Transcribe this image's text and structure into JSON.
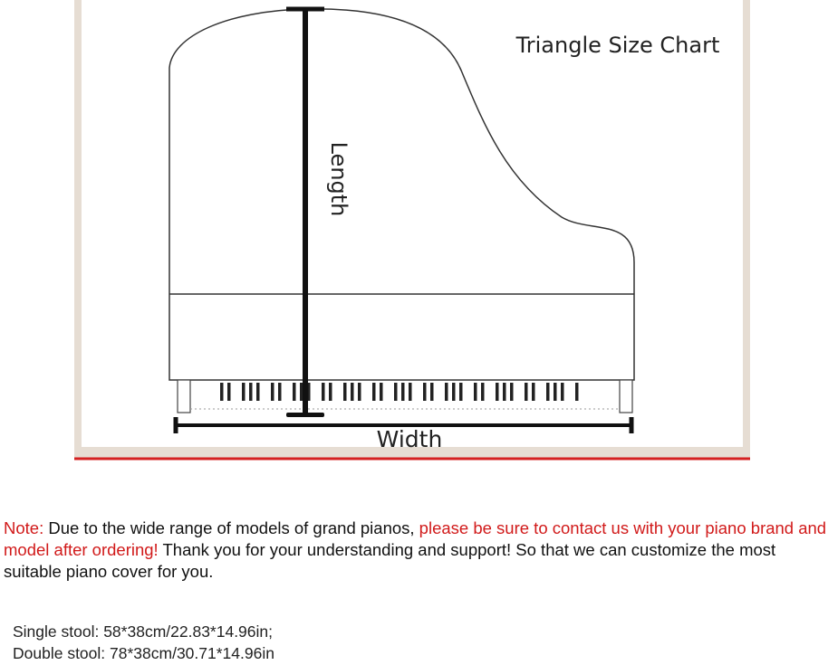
{
  "diagram": {
    "title": "Triangle Size Chart",
    "length_label": "Length",
    "width_label": "Width",
    "accent_color": "#d42020"
  },
  "note": {
    "prefix": "Note:",
    "text1": " Due to the wide range of models of grand pianos, ",
    "highlight": "please be sure to contact us with your piano brand and model after ordering!",
    "text2": " Thank you for your understanding and support! So that we can customize the most suitable piano cover for you."
  },
  "stools": [
    "Single stool: 58*38cm/22.83*14.96in;",
    "Double stool: 78*38cm/30.71*14.96in"
  ]
}
